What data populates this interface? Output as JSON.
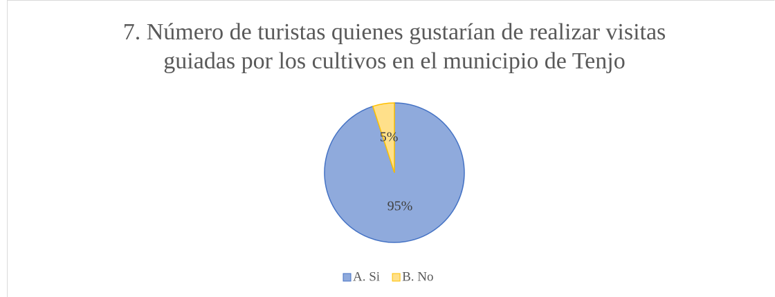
{
  "chart_data": {
    "type": "pie",
    "title": "7. Número de turistas quienes gustarían de realizar visitas guiadas por los cultivos en el municipio de Tenjo",
    "categories": [
      "A. Si",
      "B. No"
    ],
    "values": [
      95,
      5
    ],
    "value_labels": [
      "95%",
      "5%"
    ],
    "colors": [
      "#8faadc",
      "#ffe08a"
    ],
    "edge_colors": [
      "#4472c4",
      "#ffc000"
    ],
    "legend": "bottom"
  }
}
